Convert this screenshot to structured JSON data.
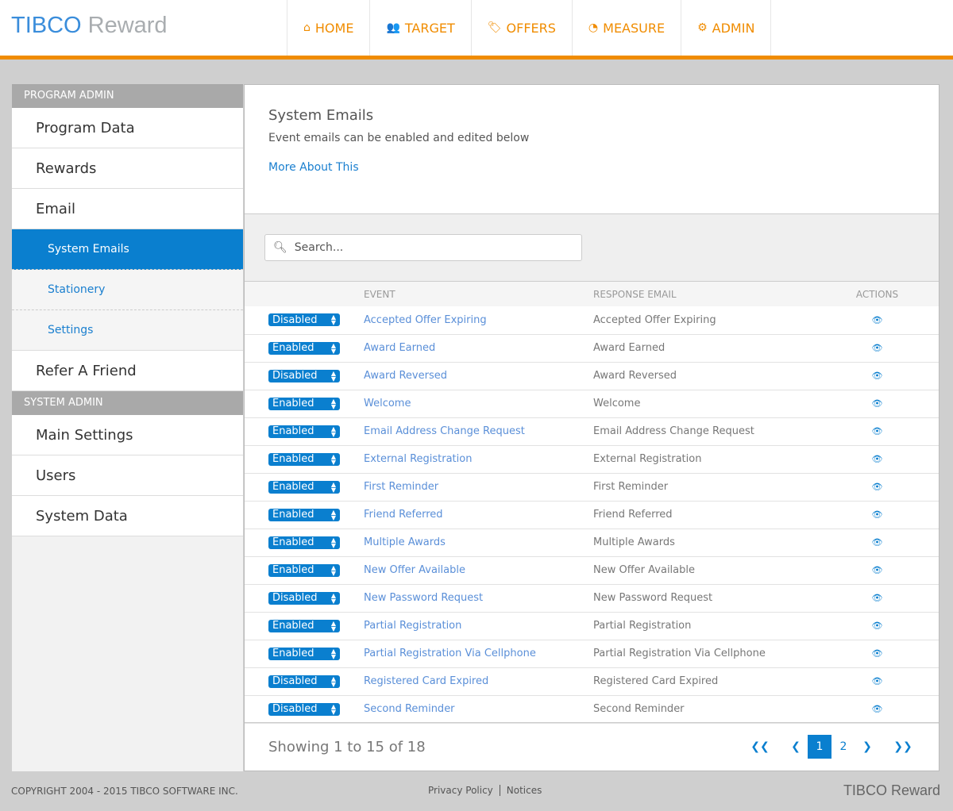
{
  "header": {
    "logo_brand": "TIBCO",
    "logo_product": "Reward",
    "nav": [
      {
        "icon": "home-icon",
        "glyph": "⌂",
        "label": "HOME"
      },
      {
        "icon": "users-icon",
        "glyph": "👥",
        "label": "TARGET"
      },
      {
        "icon": "tags-icon",
        "glyph": "🏷",
        "label": "OFFERS"
      },
      {
        "icon": "dashboard-icon",
        "glyph": "◔",
        "label": "MEASURE"
      },
      {
        "icon": "gears-icon",
        "glyph": "⚙",
        "label": "ADMIN"
      }
    ],
    "accent": "#f08c00"
  },
  "sidebar": {
    "program_admin": "PROGRAM ADMIN",
    "program_items": [
      "Program Data",
      "Rewards",
      "Email"
    ],
    "email_sub": [
      "System Emails",
      "Stationery",
      "Settings"
    ],
    "refer": "Refer A Friend",
    "system_admin": "SYSTEM ADMIN",
    "system_items": [
      "Main Settings",
      "Users",
      "System Data"
    ]
  },
  "main": {
    "title": "System Emails",
    "subtitle": "Event emails can be enabled and edited below",
    "more_link": "More About This",
    "search_placeholder": "Search...",
    "columns": [
      "",
      "EVENT",
      "RESPONSE EMAIL",
      "ACTIONS"
    ],
    "rows": [
      {
        "status": "Disabled",
        "event": "Accepted Offer Expiring",
        "response": "Accepted Offer Expiring"
      },
      {
        "status": "Enabled",
        "event": "Award Earned",
        "response": "Award Earned"
      },
      {
        "status": "Disabled",
        "event": "Award Reversed",
        "response": "Award Reversed"
      },
      {
        "status": "Enabled",
        "event": "Welcome",
        "response": "Welcome"
      },
      {
        "status": "Enabled",
        "event": "Email Address Change Request",
        "response": "Email Address Change Request"
      },
      {
        "status": "Enabled",
        "event": "External Registration",
        "response": "External Registration"
      },
      {
        "status": "Enabled",
        "event": "First Reminder",
        "response": "First Reminder"
      },
      {
        "status": "Enabled",
        "event": "Friend Referred",
        "response": "Friend Referred"
      },
      {
        "status": "Enabled",
        "event": "Multiple Awards",
        "response": "Multiple Awards"
      },
      {
        "status": "Enabled",
        "event": "New Offer Available",
        "response": "New Offer Available"
      },
      {
        "status": "Disabled",
        "event": "New Password Request",
        "response": "New Password Request"
      },
      {
        "status": "Enabled",
        "event": "Partial Registration",
        "response": "Partial Registration"
      },
      {
        "status": "Enabled",
        "event": "Partial Registration Via Cellphone",
        "response": "Partial Registration Via Cellphone"
      },
      {
        "status": "Disabled",
        "event": "Registered Card Expired",
        "response": "Registered Card Expired"
      },
      {
        "status": "Disabled",
        "event": "Second Reminder",
        "response": "Second Reminder"
      }
    ],
    "showing": "Showing 1 to 15 of 18",
    "pages": [
      "1",
      "2"
    ],
    "current_page": "1"
  },
  "footer": {
    "copyright": "COPYRIGHT 2004 - 2015 TIBCO SOFTWARE INC.",
    "links": [
      "Privacy Policy",
      "Notices"
    ],
    "logo_brand": "TIBCO",
    "logo_product": "Reward"
  }
}
